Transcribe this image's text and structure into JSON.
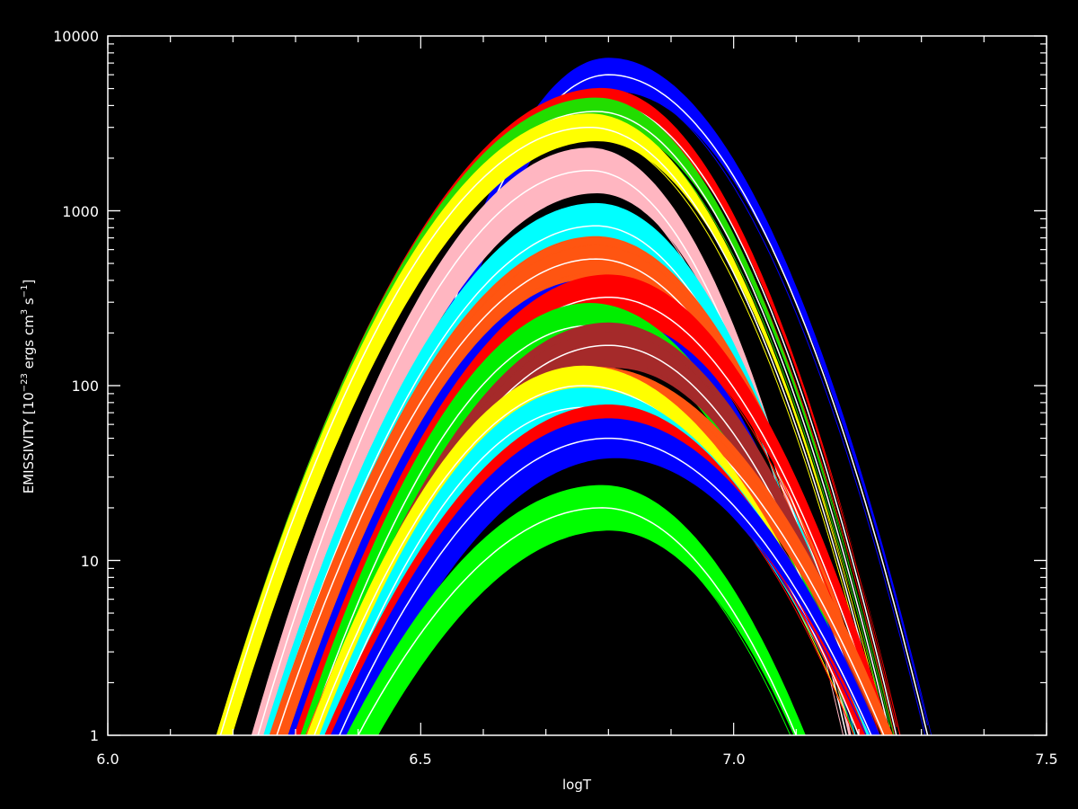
{
  "chart_data": {
    "type": "line",
    "title": "",
    "xlabel": "logT",
    "ylabel_parts": [
      "EMISSIVITY ",
      "[10",
      "−23",
      " ergs cm",
      "3",
      " s",
      "−1",
      "]"
    ],
    "ylabel": "EMISSIVITY [10−23 ergs cm3 s−1]",
    "x_ticks": [
      "6.0",
      "6.5",
      "7.0",
      "7.5"
    ],
    "y_ticks": [
      "1",
      "10",
      "100",
      "1000",
      "10000"
    ],
    "xlim": [
      6.0,
      7.5
    ],
    "ylim": [
      1,
      10000
    ],
    "yscale": "log",
    "background": "#000000",
    "axis_color": "#ffffff",
    "series": [
      {
        "color": "#0000ff",
        "peak_x": 6.8,
        "peak": 6000,
        "spread": 0.25,
        "x_start": 6.38,
        "x_end": 7.31
      },
      {
        "color": "#ff0000",
        "peak_x": 6.79,
        "peak": 4200,
        "spread": 0.2,
        "x_start": 6.18,
        "x_end": 7.26
      },
      {
        "color": "#22dd00",
        "peak_x": 6.78,
        "peak": 3700,
        "spread": 0.2,
        "x_start": 6.18,
        "x_end": 7.25
      },
      {
        "color": "#ffff00",
        "peak_x": 6.77,
        "peak": 3000,
        "spread": 0.2,
        "x_start": 6.18,
        "x_end": 7.24
      },
      {
        "color": "#ffb6c1",
        "peak_x": 6.77,
        "peak": 1700,
        "spread": 0.35,
        "x_start": 6.24,
        "x_end": 7.18
      },
      {
        "color": "#00ffff",
        "peak_x": 6.78,
        "peak": 820,
        "spread": 0.35,
        "x_start": 6.26,
        "x_end": 7.2
      },
      {
        "color": "#ff5511",
        "peak_x": 6.78,
        "peak": 530,
        "spread": 0.35,
        "x_start": 6.27,
        "x_end": 7.22
      },
      {
        "color": "#0000ff",
        "peak_x": 6.77,
        "peak": 300,
        "spread": 0.35,
        "x_start": 6.3,
        "x_end": 7.2
      },
      {
        "color": "#ff0000",
        "peak_x": 6.8,
        "peak": 320,
        "spread": 0.35,
        "x_start": 6.31,
        "x_end": 7.24
      },
      {
        "color": "#00ee00",
        "peak_x": 6.77,
        "peak": 220,
        "spread": 0.35,
        "x_start": 6.32,
        "x_end": 7.2
      },
      {
        "color": "#a52a2a",
        "peak_x": 6.8,
        "peak": 170,
        "spread": 0.35,
        "x_start": 6.34,
        "x_end": 7.22
      },
      {
        "color": "#ff5511",
        "peak_x": 6.78,
        "peak": 95,
        "spread": 0.35,
        "x_start": 6.33,
        "x_end": 7.24
      },
      {
        "color": "#ffff00",
        "peak_x": 6.76,
        "peak": 100,
        "spread": 0.3,
        "x_start": 6.33,
        "x_end": 7.2
      },
      {
        "color": "#00ffff",
        "peak_x": 6.76,
        "peak": 75,
        "spread": 0.3,
        "x_start": 6.35,
        "x_end": 7.21
      },
      {
        "color": "#ff0000",
        "peak_x": 6.8,
        "peak": 60,
        "spread": 0.3,
        "x_start": 6.36,
        "x_end": 7.2
      },
      {
        "color": "#0000ff",
        "peak_x": 6.8,
        "peak": 50,
        "spread": 0.3,
        "x_start": 6.37,
        "x_end": 7.22
      },
      {
        "color": "#00ff00",
        "peak_x": 6.79,
        "peak": 20,
        "spread": 0.35,
        "x_start": 6.4,
        "x_end": 7.1
      }
    ]
  }
}
